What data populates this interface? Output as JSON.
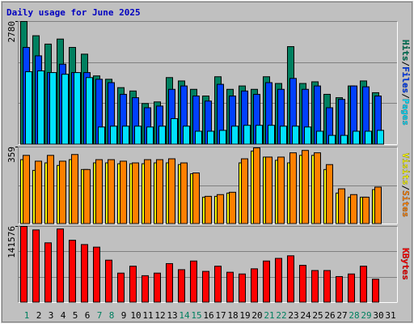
{
  "title": "Daily usage for June 2025",
  "categories": [
    "1",
    "2",
    "3",
    "4",
    "5",
    "6",
    "7",
    "8",
    "9",
    "10",
    "11",
    "12",
    "13",
    "14",
    "15",
    "16",
    "17",
    "18",
    "19",
    "20",
    "21",
    "22",
    "23",
    "24",
    "25",
    "26",
    "27",
    "28",
    "29",
    "30",
    "31"
  ],
  "highlight_indices": [
    0,
    6,
    7,
    13,
    14,
    20,
    21,
    27,
    28
  ],
  "highlight_color": "#008060",
  "separator": "/",
  "chart_data": [
    {
      "type": "bar",
      "ylim": [
        0,
        2780
      ],
      "yticks": [
        2780
      ],
      "grid_divisions": 3,
      "series": [
        {
          "name": "Hits",
          "color": "#008060",
          "values": [
            2780,
            2458,
            2269,
            2383,
            2194,
            2042,
            1551,
            1475,
            1286,
            1210,
            927,
            964,
            1513,
            1437,
            1248,
            1097,
            1532,
            1248,
            1324,
            1248,
            1532,
            1380,
            2212,
            1380,
            1418,
            1135,
            1059,
            1324,
            1437,
            1172,
            0
          ]
        },
        {
          "name": "Files",
          "color": "#0040ff",
          "values": [
            2194,
            2004,
            1626,
            1815,
            1626,
            1626,
            1475,
            1399,
            1135,
            1059,
            832,
            870,
            1248,
            1324,
            1097,
            983,
            1361,
            1097,
            1210,
            1135,
            1399,
            1248,
            1494,
            1248,
            1324,
            832,
            1021,
            1324,
            1305,
            1097,
            0
          ]
        },
        {
          "name": "Pages",
          "color": "#00e0ff",
          "values": [
            1645,
            1664,
            1626,
            1588,
            1626,
            1513,
            397,
            416,
            416,
            416,
            397,
            416,
            586,
            416,
            302,
            302,
            321,
            416,
            435,
            435,
            435,
            416,
            416,
            397,
            302,
            208,
            208,
            302,
            302,
            321,
            0
          ]
        }
      ]
    },
    {
      "type": "bar",
      "ylim": [
        0,
        359
      ],
      "yticks": [
        359
      ],
      "grid_divisions": 2,
      "series": [
        {
          "name": "Visits",
          "color": "#ffff00",
          "values": [
            300,
            250,
            285,
            273,
            300,
            254,
            285,
            285,
            281,
            281,
            281,
            285,
            285,
            277,
            234,
            125,
            129,
            144,
            285,
            340,
            312,
            297,
            285,
            320,
            320,
            254,
            144,
            125,
            125,
            160,
            0
          ]
        },
        {
          "name": "Sites",
          "color": "#ff8000",
          "values": [
            320,
            293,
            320,
            293,
            324,
            254,
            300,
            300,
            293,
            285,
            300,
            300,
            304,
            285,
            238,
            129,
            137,
            148,
            304,
            355,
            312,
            312,
            332,
            343,
            332,
            277,
            164,
            137,
            125,
            172,
            0
          ]
        }
      ]
    },
    {
      "type": "bar",
      "ylim": [
        0,
        141576
      ],
      "yticks": [
        141576
      ],
      "grid_divisions": 3,
      "series": [
        {
          "name": "KBytes",
          "color": "#ff0000",
          "values": [
            141576,
            135000,
            111000,
            136800,
            115800,
            107800,
            103000,
            78800,
            54700,
            67600,
            49900,
            54700,
            72400,
            61100,
            77200,
            57900,
            67600,
            56300,
            53100,
            62700,
            77200,
            82100,
            86900,
            69200,
            59500,
            59500,
            48300,
            53100,
            67600,
            43400,
            0
          ]
        }
      ]
    }
  ]
}
